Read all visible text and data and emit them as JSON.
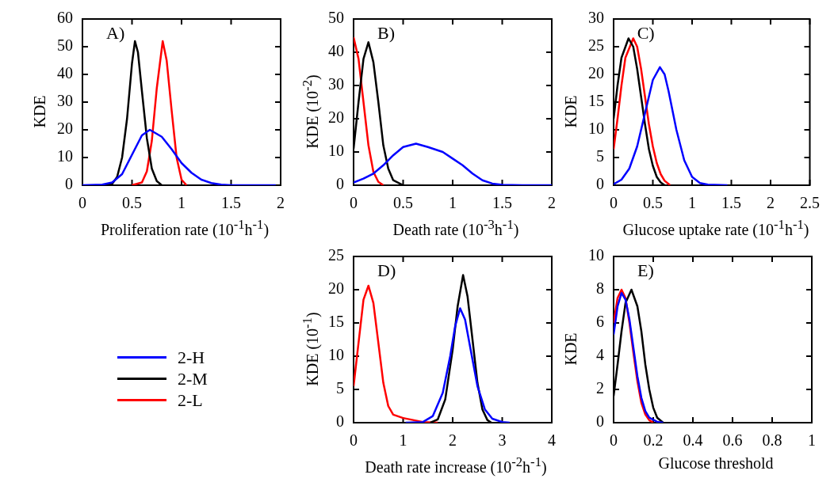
{
  "chart_data": [
    {
      "type": "line",
      "xlabel": "Proliferation rate (10$^{-1}$h$^{-1}$)",
      "ylabel": "KDE",
      "annotations": [
        "A)"
      ],
      "xlim": [
        0,
        2
      ],
      "xticks": [
        0,
        0.5,
        1,
        1.5,
        2
      ],
      "ylim": [
        0,
        60
      ],
      "yticks": [
        0,
        10,
        20,
        30,
        40,
        50,
        60
      ],
      "grid": false,
      "legend": "bottom",
      "marker": "none",
      "line_style": "solid",
      "series": [
        {
          "name": "2-H",
          "color": "#0000ff",
          "x": [
            0,
            0.2,
            0.3,
            0.4,
            0.5,
            0.6,
            0.68,
            0.8,
            0.9,
            1.0,
            1.1,
            1.2,
            1.3,
            1.4,
            1.5,
            1.95
          ],
          "values": [
            0,
            0.2,
            1,
            4,
            11,
            18,
            20,
            17.5,
            13,
            8,
            4.5,
            2,
            0.8,
            0.2,
            0,
            0
          ]
        },
        {
          "name": "2-M",
          "color": "#000000",
          "x": [
            0.25,
            0.3,
            0.35,
            0.4,
            0.45,
            0.5,
            0.53,
            0.56,
            0.6,
            0.65,
            0.7,
            0.75,
            0.8
          ],
          "values": [
            0,
            0.5,
            3,
            10,
            24,
            44,
            52,
            48,
            34,
            17,
            6,
            1.5,
            0
          ]
        },
        {
          "name": "2-L",
          "color": "#ff0000",
          "x": [
            0.5,
            0.6,
            0.65,
            0.7,
            0.75,
            0.81,
            0.85,
            0.9,
            0.95,
            1.0,
            1.05
          ],
          "values": [
            0,
            1,
            5,
            16,
            35,
            52,
            45,
            27,
            10,
            2,
            0
          ]
        }
      ]
    },
    {
      "type": "line",
      "xlabel": "Death rate (10$^{-3}$h$^{-1}$)",
      "ylabel": "KDE (10$^{-2}$)",
      "annotations": [
        "B)"
      ],
      "xlim": [
        0,
        2
      ],
      "xticks": [
        0,
        0.5,
        1,
        1.5,
        2
      ],
      "ylim": [
        0,
        50
      ],
      "yticks": [
        0,
        10,
        20,
        30,
        40,
        50
      ],
      "grid": false,
      "marker": "none",
      "line_style": "solid",
      "series": [
        {
          "color": "#0000ff",
          "x": [
            0,
            0.1,
            0.2,
            0.3,
            0.4,
            0.5,
            0.63,
            0.75,
            0.9,
            1.0,
            1.1,
            1.2,
            1.3,
            1.4,
            1.5,
            1.7,
            2.0
          ],
          "values": [
            0.8,
            2,
            3.5,
            6,
            9,
            11.5,
            12.5,
            11.5,
            10,
            8,
            6,
            3.5,
            1.5,
            0.5,
            0.1,
            0,
            0
          ]
        },
        {
          "color": "#000000",
          "x": [
            0,
            0.05,
            0.1,
            0.15,
            0.2,
            0.25,
            0.3,
            0.35,
            0.4,
            0.5
          ],
          "values": [
            11,
            25,
            38,
            43,
            37,
            25,
            12,
            5,
            1.5,
            0
          ]
        },
        {
          "color": "#ff0000",
          "x": [
            0,
            0.05,
            0.1,
            0.15,
            0.2,
            0.25,
            0.3
          ],
          "values": [
            44.5,
            38,
            25,
            12,
            4,
            1,
            0
          ]
        }
      ]
    },
    {
      "type": "line",
      "xlabel": "Glucose uptake rate (10$^{-1}$h$^{-1}$)",
      "ylabel": "KDE",
      "annotations": [
        "C)"
      ],
      "xlim": [
        0,
        2.5
      ],
      "xticks": [
        0,
        0.5,
        1,
        1.5,
        2,
        2.5
      ],
      "ylim": [
        0,
        30
      ],
      "yticks": [
        0,
        5,
        10,
        15,
        20,
        25,
        30
      ],
      "grid": false,
      "marker": "none",
      "line_style": "solid",
      "series": [
        {
          "color": "#0000ff",
          "x": [
            0,
            0.1,
            0.2,
            0.3,
            0.4,
            0.5,
            0.59,
            0.65,
            0.7,
            0.8,
            0.9,
            1.0,
            1.1,
            1.2,
            1.45
          ],
          "values": [
            0.2,
            1,
            3,
            7,
            13,
            19,
            21.3,
            20,
            17,
            10,
            4.5,
            1.5,
            0.4,
            0.1,
            0
          ]
        },
        {
          "color": "#000000",
          "x": [
            0,
            0.05,
            0.1,
            0.19,
            0.25,
            0.3,
            0.35,
            0.4,
            0.45,
            0.5,
            0.55,
            0.6,
            0.65
          ],
          "values": [
            12,
            18,
            23,
            26.5,
            25,
            21,
            16,
            11,
            6.5,
            3.5,
            1.5,
            0.5,
            0
          ]
        },
        {
          "color": "#ff0000",
          "x": [
            0,
            0.05,
            0.1,
            0.15,
            0.25,
            0.3,
            0.35,
            0.4,
            0.45,
            0.5,
            0.55,
            0.6,
            0.65,
            0.72
          ],
          "values": [
            6.5,
            12,
            18,
            23,
            26.5,
            25,
            21,
            16,
            11,
            7,
            4,
            2,
            0.8,
            0
          ]
        }
      ]
    },
    {
      "type": "line",
      "xlabel": "Death rate increase (10$^{-2}$h$^{-1}$)",
      "ylabel": "KDE (10$^{-1}$)",
      "annotations": [
        "D)"
      ],
      "xlim": [
        0,
        4
      ],
      "xticks": [
        0,
        1,
        2,
        3,
        4
      ],
      "ylim": [
        0,
        25
      ],
      "yticks": [
        0,
        5,
        10,
        15,
        20,
        25
      ],
      "grid": false,
      "marker": "none",
      "line_style": "solid",
      "series": [
        {
          "color": "#0000ff",
          "x": [
            1.05,
            1.4,
            1.6,
            1.8,
            1.95,
            2.05,
            2.15,
            2.25,
            2.35,
            2.5,
            2.65,
            2.8,
            3.0,
            3.15
          ],
          "values": [
            0,
            0.1,
            1,
            4.5,
            10,
            14.5,
            17.2,
            15.5,
            11.5,
            5.5,
            2,
            0.6,
            0.1,
            0
          ]
        },
        {
          "color": "#000000",
          "x": [
            1.55,
            1.7,
            1.85,
            2.0,
            2.1,
            2.21,
            2.3,
            2.4,
            2.5,
            2.6,
            2.7,
            2.78
          ],
          "values": [
            0,
            0.5,
            3.5,
            11,
            17.5,
            22.2,
            19,
            12.5,
            6,
            2,
            0.4,
            0
          ]
        },
        {
          "color": "#ff0000",
          "x": [
            0,
            0.1,
            0.2,
            0.3,
            0.4,
            0.5,
            0.6,
            0.7,
            0.8,
            1.0,
            1.2,
            1.4,
            1.7
          ],
          "values": [
            5.5,
            12,
            18.5,
            20.6,
            18,
            12,
            6,
            2.5,
            1.2,
            0.7,
            0.4,
            0.1,
            0
          ]
        }
      ]
    },
    {
      "type": "line",
      "xlabel": "Glucose threshold",
      "ylabel": "KDE",
      "annotations": [
        "E)"
      ],
      "xlim": [
        0,
        1
      ],
      "xticks": [
        0,
        0.2,
        0.4,
        0.6,
        0.8,
        1
      ],
      "ylim": [
        0,
        10
      ],
      "yticks": [
        0,
        2,
        4,
        6,
        8,
        10
      ],
      "grid": false,
      "marker": "none",
      "line_style": "solid",
      "series": [
        {
          "color": "#0000ff",
          "x": [
            0,
            0.02,
            0.04,
            0.06,
            0.08,
            0.1,
            0.12,
            0.14,
            0.16,
            0.18,
            0.22,
            0.25
          ],
          "values": [
            5.3,
            7,
            7.8,
            7.4,
            6.2,
            4.5,
            2.8,
            1.5,
            0.7,
            0.3,
            0.05,
            0
          ]
        },
        {
          "color": "#000000",
          "x": [
            0,
            0.02,
            0.04,
            0.06,
            0.09,
            0.12,
            0.14,
            0.16,
            0.18,
            0.2,
            0.22,
            0.25
          ],
          "values": [
            1.6,
            3.5,
            5.5,
            7.2,
            8,
            7,
            5.5,
            3.5,
            2,
            0.9,
            0.3,
            0
          ]
        },
        {
          "color": "#ff0000",
          "x": [
            0,
            0.02,
            0.04,
            0.06,
            0.08,
            0.1,
            0.12,
            0.14,
            0.16,
            0.18,
            0.2
          ],
          "values": [
            6,
            7.5,
            8,
            7.5,
            6,
            4.2,
            2.5,
            1.2,
            0.5,
            0.15,
            0
          ]
        }
      ]
    }
  ]
}
